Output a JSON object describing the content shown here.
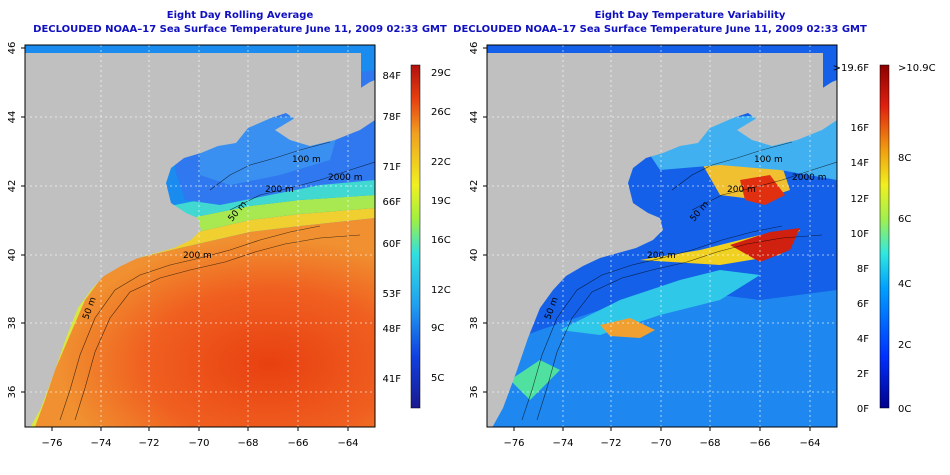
{
  "left": {
    "title": "Eight Day Rolling Average",
    "subtitle": "DECLOUDED NOAA–17 Sea Surface Temperature June 11, 2009 02:33 GMT",
    "x_ticks": [
      "−76",
      "−74",
      "−72",
      "−70",
      "−68",
      "−66",
      "−64"
    ],
    "y_ticks": [
      "46",
      "44",
      "42",
      "40",
      "38",
      "36"
    ],
    "contour_labels": [
      "200 m",
      "2000 m",
      "50 m",
      "200 m",
      "50 m",
      "100 m"
    ],
    "colorbar": {
      "f_labels": [
        "84F",
        "78F",
        "71F",
        "66F",
        "60F",
        "53F",
        "48F",
        "41F"
      ],
      "c_labels": [
        "29C",
        "26C",
        "22C",
        "19C",
        "16C",
        "12C",
        "9C",
        "5C"
      ]
    }
  },
  "right": {
    "title": "Eight Day Temperature Variability",
    "subtitle": "DECLOUDED NOAA–17 Sea Surface Temperature June 11, 2009 02:33 GMT",
    "x_ticks": [
      "−76",
      "−74",
      "−72",
      "−70",
      "−68",
      "−66",
      "−64"
    ],
    "y_ticks": [
      "46",
      "44",
      "42",
      "40",
      "38",
      "36"
    ],
    "contour_labels": [
      "200 m",
      "2000 m",
      "50 m",
      "200 m",
      "50 m",
      "100 m"
    ],
    "colorbar": {
      "f_labels": [
        ">19.6F",
        "16F",
        "14F",
        "12F",
        "10F",
        "8F",
        "6F",
        "4F",
        "2F",
        "0F"
      ],
      "c_labels": [
        ">10.9C",
        "8C",
        "6C",
        "4C",
        "2C",
        "0C"
      ]
    }
  },
  "colors": {
    "title": "#1010c0",
    "land": "#c0c0c0",
    "axis": "#000000"
  }
}
